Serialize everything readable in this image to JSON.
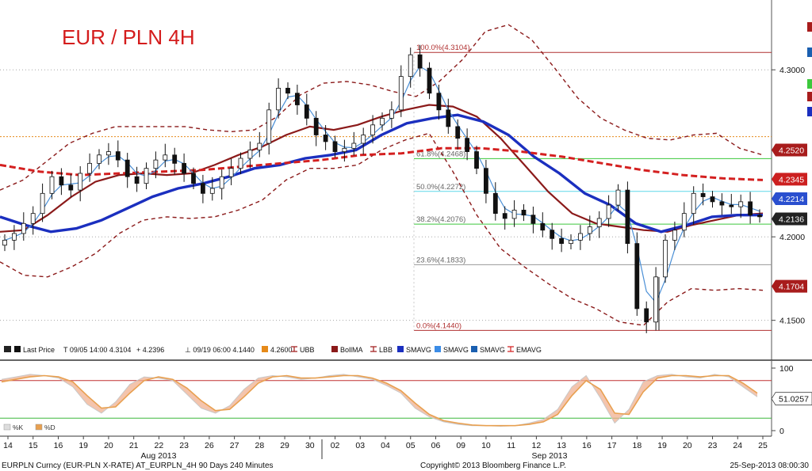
{
  "title": "EUR / PLN 4H",
  "footer": {
    "left": "EURPLN Curncy (EUR-PLN X-RATE) AT_EURPLN_4H 90 Days 240 Minutes",
    "center": "Copyright© 2013 Bloomberg Finance L.P.",
    "right": "25-Sep-2013 08:00:30"
  },
  "legend": [
    {
      "id": "last-price",
      "text": "Last Price",
      "color": "#000000",
      "icon": "candle-icon"
    },
    {
      "id": "high",
      "text": "T 09/05 14:00 4.3104",
      "color": "#000000",
      "icon": "none"
    },
    {
      "id": "last",
      "text": "+ 4.2396",
      "color": "#000000",
      "icon": "none"
    },
    {
      "id": "low",
      "text": "⊥ 09/19 06:00 4.1440",
      "color": "#000000",
      "icon": "none"
    },
    {
      "id": "level",
      "text": "4.2600",
      "color": "#e68a1a",
      "icon": "square-icon"
    },
    {
      "id": "ubb",
      "text": "UBB",
      "color": "#a01c1c",
      "icon": "dash-icon"
    },
    {
      "id": "bollma",
      "text": "BollMA",
      "color": "#8b1a1a",
      "icon": "square-icon"
    },
    {
      "id": "lbb",
      "text": "LBB",
      "color": "#a01c1c",
      "icon": "dash-icon"
    },
    {
      "id": "smavg1",
      "text": "SMAVG",
      "color": "#1b2fbf",
      "icon": "square-icon"
    },
    {
      "id": "smavg2",
      "text": "SMAVG",
      "color": "#3c8ce6",
      "icon": "square-icon"
    },
    {
      "id": "smavg3",
      "text": "SMAVG",
      "color": "#1a5fb0",
      "icon": "square-icon"
    },
    {
      "id": "emavg",
      "text": "EMAVG",
      "color": "#d42020",
      "icon": "dash-icon"
    }
  ],
  "colors": {
    "ubb": "#8b1a1a",
    "bollma": "#8b1a1a",
    "smavg_slow": "#1b2fbf",
    "smavg_fast": "#4a8fd6",
    "emavg": "#d42020",
    "level_line": "#e68a1a",
    "fib_line": "#b03030",
    "fib_50": "#5fd7e8",
    "fib_382": "#3cc83c",
    "grid": "#9a9a9a",
    "osc_line": "#e8a050",
    "osc_fill": "#f0b090",
    "osc_grey": "#c8c8c8"
  },
  "chart_data": [
    {
      "type": "candlestick",
      "title": "EUR / PLN 4H",
      "ylim": [
        4.138,
        4.338
      ],
      "y_ticks": [
        4.15,
        4.2,
        4.3
      ],
      "y_tick_labels": [
        "4.1500",
        "4.2000",
        "4.3000"
      ],
      "x_tick_labels": [
        "14",
        "15",
        "16",
        "19",
        "20",
        "21",
        "22",
        "23",
        "26",
        "27",
        "28",
        "29",
        "30",
        "02",
        "03",
        "04",
        "05",
        "06",
        "09",
        "10",
        "11",
        "12",
        "13",
        "16",
        "17",
        "18",
        "19",
        "20",
        "23",
        "24",
        "25"
      ],
      "month_labels": [
        {
          "text": "Aug 2013",
          "at_tick": 10
        },
        {
          "text": "Sep 2013",
          "at_tick": 22
        }
      ],
      "horizontal_level": 4.26,
      "fibonacci": [
        {
          "label": "100.0%(4.3104)",
          "value": 4.3104
        },
        {
          "label": "61.8%(4.2468)",
          "value": 4.2468
        },
        {
          "label": "50.0%(4.2272)",
          "value": 4.2272
        },
        {
          "label": "38.2%(4.2076)",
          "value": 4.2076
        },
        {
          "label": "23.6%(4.1833)",
          "value": 4.1833
        },
        {
          "label": "0.0%(4.1440)",
          "value": 4.144
        }
      ],
      "price_tags": [
        {
          "text": "4.2520",
          "value": 4.252,
          "color": "#a81c1c"
        },
        {
          "text": "4.2345",
          "value": 4.2345,
          "color": "#cc2020"
        },
        {
          "text": "4.2214",
          "value": 4.2214,
          "color": "#2a4fcf"
        },
        {
          "text": "4.2136",
          "value": 4.2136,
          "color": "#222222"
        },
        {
          "text": "4.1704",
          "value": 4.1704,
          "color": "#a81c1c"
        }
      ],
      "close_path": [
        4.198,
        4.202,
        4.208,
        4.214,
        4.226,
        4.236,
        4.231,
        4.228,
        4.238,
        4.244,
        4.249,
        4.251,
        4.246,
        4.236,
        4.232,
        4.241,
        4.246,
        4.249,
        4.244,
        4.238,
        4.232,
        4.226,
        4.229,
        4.236,
        4.241,
        4.247,
        4.252,
        4.256,
        4.276,
        4.289,
        4.286,
        4.279,
        4.271,
        4.261,
        4.257,
        4.251,
        4.253,
        4.256,
        4.261,
        4.267,
        4.271,
        4.276,
        4.296,
        4.309,
        4.301,
        4.286,
        4.276,
        4.266,
        4.259,
        4.251,
        4.241,
        4.226,
        4.214,
        4.211,
        4.216,
        4.213,
        4.208,
        4.204,
        4.199,
        4.196,
        4.198,
        4.202,
        4.206,
        4.211,
        4.219,
        4.228,
        4.196,
        4.157,
        4.149,
        4.176,
        4.198,
        4.204,
        4.214,
        4.226,
        4.224,
        4.221,
        4.219,
        4.218,
        4.221,
        4.213,
        4.212
      ],
      "series": [
        {
          "name": "UBB",
          "values": [
            4.228,
            4.234,
            4.245,
            4.256,
            4.262,
            4.266,
            4.266,
            4.266,
            4.266,
            4.264,
            4.263,
            4.264,
            4.272,
            4.285,
            4.292,
            4.293,
            4.291,
            4.287,
            4.284,
            4.293,
            4.306,
            4.323,
            4.327,
            4.318,
            4.301,
            4.283,
            4.271,
            4.264,
            4.259,
            4.258,
            4.261,
            4.262,
            4.253,
            4.249
          ]
        },
        {
          "name": "BollMA",
          "values": [
            4.203,
            4.204,
            4.213,
            4.224,
            4.233,
            4.237,
            4.238,
            4.237,
            4.238,
            4.243,
            4.249,
            4.254,
            4.261,
            4.266,
            4.264,
            4.267,
            4.272,
            4.276,
            4.279,
            4.278,
            4.272,
            4.259,
            4.243,
            4.227,
            4.214,
            4.208,
            4.206,
            4.204,
            4.203,
            4.207,
            4.21,
            4.213,
            4.214
          ]
        },
        {
          "name": "LBB",
          "values": [
            4.185,
            4.177,
            4.176,
            4.182,
            4.19,
            4.202,
            4.21,
            4.212,
            4.211,
            4.212,
            4.216,
            4.222,
            4.234,
            4.241,
            4.241,
            4.243,
            4.252,
            4.258,
            4.262,
            4.239,
            4.213,
            4.193,
            4.182,
            4.172,
            4.163,
            4.157,
            4.149,
            4.147,
            4.161,
            4.169,
            4.168,
            4.169,
            4.168
          ]
        },
        {
          "name": "SMAVG",
          "values": [
            4.212,
            4.207,
            4.203,
            4.205,
            4.21,
            4.217,
            4.224,
            4.229,
            4.232,
            4.236,
            4.241,
            4.243,
            4.247,
            4.249,
            4.252,
            4.261,
            4.268,
            4.271,
            4.273,
            4.269,
            4.261,
            4.248,
            4.238,
            4.226,
            4.219,
            4.208,
            4.203,
            4.207,
            4.212,
            4.213,
            4.213
          ]
        },
        {
          "name": "EMAVG",
          "values": [
            4.243,
            4.239,
            4.237,
            4.238,
            4.239,
            4.24,
            4.242,
            4.244,
            4.246,
            4.249,
            4.25,
            4.253,
            4.253,
            4.251,
            4.248,
            4.244,
            4.24,
            4.237,
            4.235,
            4.234
          ]
        }
      ]
    },
    {
      "type": "line",
      "ylim": [
        0,
        100
      ],
      "y_tick_labels": [
        "100",
        "0"
      ],
      "reference_lines": [
        80,
        20
      ],
      "current_value": 51.0257,
      "current_label": "51.0257",
      "series": [
        {
          "name": "%K",
          "values": [
            82,
            86,
            90,
            88,
            84,
            70,
            42,
            28,
            46,
            74,
            86,
            84,
            80,
            58,
            36,
            28,
            40,
            66,
            84,
            88,
            86,
            82,
            84,
            88,
            90,
            86,
            82,
            72,
            60,
            36,
            22,
            14,
            10,
            8,
            8,
            7,
            8,
            12,
            18,
            34,
            70,
            88,
            52,
            12,
            34,
            78,
            88,
            90,
            86,
            84,
            90,
            86,
            70,
            54
          ]
        },
        {
          "name": "%D",
          "values": [
            78,
            82,
            86,
            88,
            86,
            78,
            56,
            36,
            38,
            60,
            80,
            86,
            82,
            68,
            48,
            32,
            34,
            54,
            76,
            86,
            88,
            84,
            84,
            86,
            88,
            88,
            84,
            76,
            64,
            44,
            26,
            16,
            12,
            9,
            8,
            8,
            8,
            10,
            14,
            26,
            56,
            80,
            66,
            28,
            26,
            62,
            84,
            88,
            88,
            86,
            88,
            88,
            76,
            60
          ]
        }
      ]
    }
  ]
}
